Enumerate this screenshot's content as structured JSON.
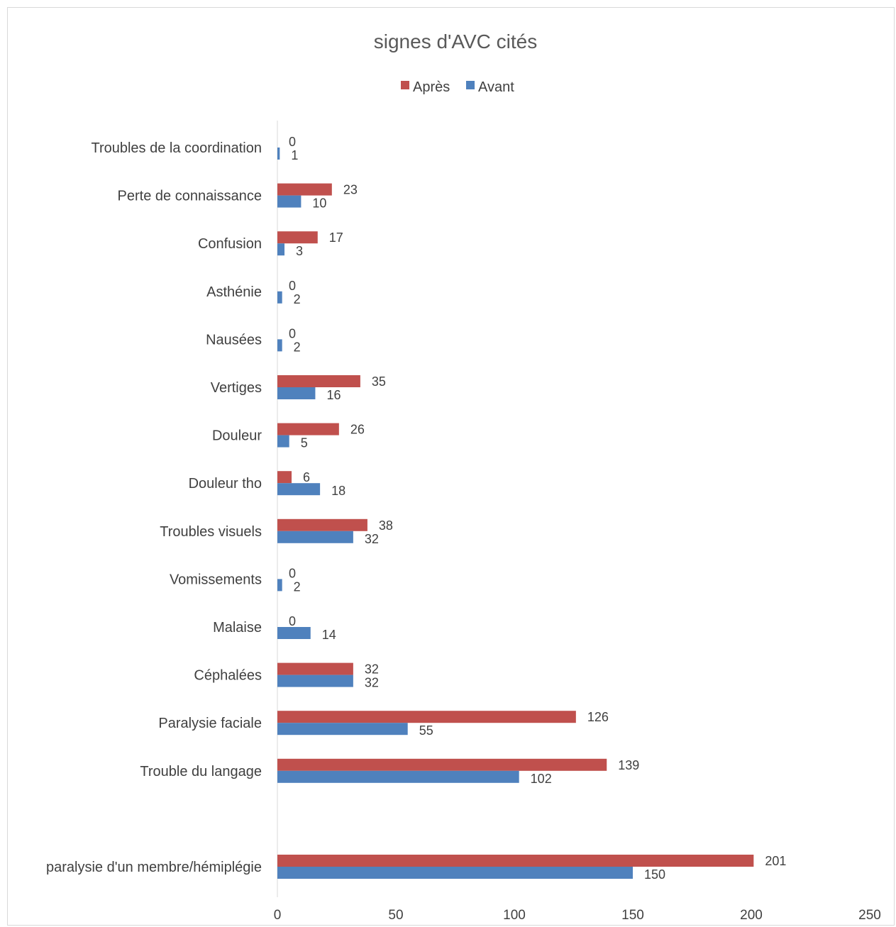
{
  "chart_data": {
    "type": "bar",
    "orientation": "horizontal",
    "title": "signes d'AVC cités",
    "categories": [
      "Troubles de la coordination",
      "Perte de connaissance",
      "Confusion",
      "Asthénie",
      "Nausées",
      "Vertiges",
      "Douleur",
      "Douleur tho",
      "Troubles visuels",
      "Vomissements",
      "Malaise",
      "Céphalées",
      "Paralysie faciale",
      "Trouble du langage",
      "",
      "paralysie d'un membre/hémiplégie"
    ],
    "series": [
      {
        "name": "Après",
        "color": "#c0504d",
        "values": [
          0,
          23,
          17,
          0,
          0,
          35,
          26,
          6,
          38,
          0,
          0,
          32,
          126,
          139,
          null,
          201
        ]
      },
      {
        "name": "Avant",
        "color": "#4f81bd",
        "values": [
          1,
          10,
          3,
          2,
          2,
          16,
          5,
          18,
          32,
          2,
          14,
          32,
          55,
          102,
          null,
          150
        ]
      }
    ],
    "xlim": [
      0,
      250
    ],
    "xticks": [
      "0",
      "50",
      "100",
      "150",
      "200",
      "250"
    ],
    "grid": false,
    "legend_position": "top-center",
    "data_labels": true
  }
}
